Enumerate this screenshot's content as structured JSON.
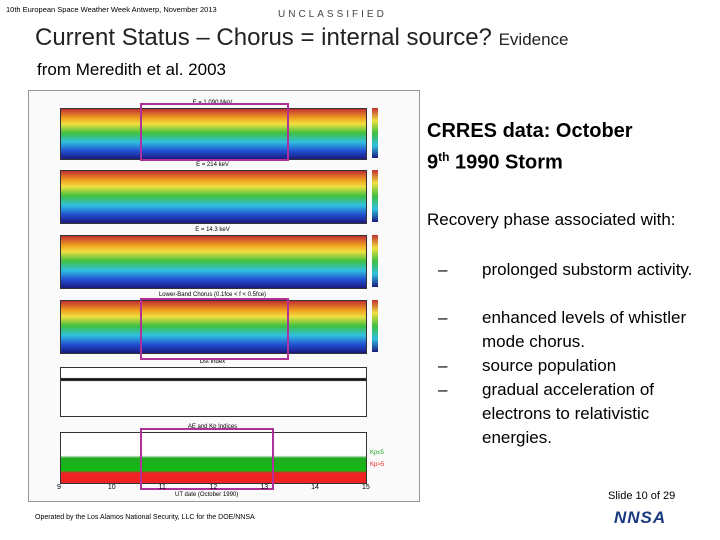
{
  "header": {
    "event": "10th European Space Weather Week Antwerp, November 2013",
    "classification": "UNCLASSIFIED",
    "title": "Current Status – Chorus = internal source?",
    "title_suffix": "Evidence",
    "subtitle": "from Meredith et al. 2003"
  },
  "figure": {
    "panels": [
      "E = 1.090 MeV",
      "E = 214 keV",
      "E = 14.3 keV",
      "Lower-Band Chorus (0.1fce < f < 0.5fce)",
      "Dst Index",
      "AE and Kp Indices"
    ],
    "x_ticks": [
      9,
      10,
      11,
      12,
      13,
      14,
      15
    ],
    "x_label": "UT date (October 1990)",
    "kp_legend": [
      "Kp≤5",
      "Kp>5"
    ]
  },
  "text": {
    "heading_line1": "CRRES data: October",
    "heading_day": "9",
    "heading_sup": "th",
    "heading_rest": " 1990 Storm",
    "intro": "Recovery phase associated with:",
    "bullets": [
      "prolonged substorm activity.",
      "enhanced levels of whistler mode chorus.",
      "source population",
      "gradual acceleration of electrons to relativistic energies."
    ]
  },
  "footer": {
    "slide": "Slide 10  of 29",
    "operator": "Operated by the Los Alamos National Security, LLC for the DOE/NNSA",
    "logo": "NNSA"
  }
}
